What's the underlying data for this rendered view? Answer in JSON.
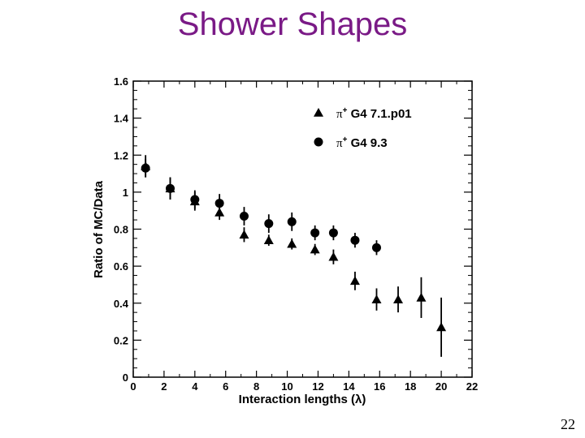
{
  "slide": {
    "title": "Shower Shapes",
    "page_number": "22"
  },
  "colors": {
    "title": "#7a1a86",
    "markers": "#000000"
  },
  "chart_data": {
    "type": "scatter",
    "title": "",
    "xlabel": "Interaction lengths (λ)",
    "ylabel": "Ratio of MC/Data",
    "xlim": [
      0,
      22
    ],
    "ylim": [
      0,
      1.6
    ],
    "xticks": [
      "0",
      "2",
      "4",
      "6",
      "8",
      "10",
      "12",
      "14",
      "16",
      "18",
      "20",
      "22"
    ],
    "yticks": [
      "0",
      "0.2",
      "0.4",
      "0.6",
      "0.8",
      "1",
      "1.2",
      "1.4",
      "1.6"
    ],
    "legend_position": "top-right",
    "grid": false,
    "series": [
      {
        "name_prefix": "π",
        "name_superscript": "+",
        "name_suffix": " G4 7.1.p01",
        "marker": "triangle",
        "points": [
          {
            "x": 0.8,
            "y": 1.14,
            "err": 0.06
          },
          {
            "x": 2.4,
            "y": 1.02,
            "err": 0.06
          },
          {
            "x": 4.0,
            "y": 0.95,
            "err": 0.05
          },
          {
            "x": 5.6,
            "y": 0.89,
            "err": 0.04
          },
          {
            "x": 7.2,
            "y": 0.77,
            "err": 0.04
          },
          {
            "x": 8.8,
            "y": 0.74,
            "err": 0.03
          },
          {
            "x": 10.3,
            "y": 0.72,
            "err": 0.03
          },
          {
            "x": 11.8,
            "y": 0.69,
            "err": 0.03
          },
          {
            "x": 13.0,
            "y": 0.65,
            "err": 0.04
          },
          {
            "x": 14.4,
            "y": 0.52,
            "err": 0.05
          },
          {
            "x": 15.8,
            "y": 0.42,
            "err": 0.06
          },
          {
            "x": 17.2,
            "y": 0.42,
            "err": 0.07
          },
          {
            "x": 18.7,
            "y": 0.43,
            "err": 0.11
          },
          {
            "x": 20.0,
            "y": 0.27,
            "err": 0.16
          }
        ]
      },
      {
        "name_prefix": "π",
        "name_superscript": "+",
        "name_suffix": " G4 9.3",
        "marker": "circle",
        "points": [
          {
            "x": 0.8,
            "y": 1.13,
            "err": 0.05
          },
          {
            "x": 2.4,
            "y": 1.02,
            "err": 0.06
          },
          {
            "x": 4.0,
            "y": 0.96,
            "err": 0.05
          },
          {
            "x": 5.6,
            "y": 0.94,
            "err": 0.05
          },
          {
            "x": 7.2,
            "y": 0.87,
            "err": 0.05
          },
          {
            "x": 8.8,
            "y": 0.83,
            "err": 0.05
          },
          {
            "x": 10.3,
            "y": 0.84,
            "err": 0.05
          },
          {
            "x": 11.8,
            "y": 0.78,
            "err": 0.04
          },
          {
            "x": 13.0,
            "y": 0.78,
            "err": 0.04
          },
          {
            "x": 14.4,
            "y": 0.74,
            "err": 0.04
          },
          {
            "x": 15.8,
            "y": 0.7,
            "err": 0.04
          }
        ]
      }
    ]
  }
}
